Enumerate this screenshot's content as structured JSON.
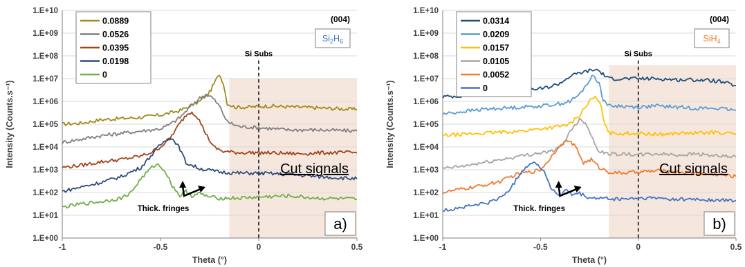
{
  "chart_data": [
    {
      "type": "line",
      "panel_label": "a)",
      "title": "",
      "reflection": "(004)",
      "gas": {
        "base": "Si",
        "sub1": "2",
        "mid": "H",
        "sub2": "6",
        "color": "#4472c4"
      },
      "xlabel": "Theta (°)",
      "ylabel": "Intensity (Counts.s⁻¹)",
      "xlim": [
        -1,
        0.5
      ],
      "ylim_log10": [
        0,
        10
      ],
      "log_scale_y": true,
      "x_ticks": [
        -1,
        -0.5,
        0,
        0.5
      ],
      "x_tick_labels": [
        "-1",
        "-0.5",
        "0",
        "0.5"
      ],
      "y_tick_labels": [
        "1.E+00",
        "1.E+01",
        "1.E+02",
        "1.E+03",
        "1.E+04",
        "1.E+05",
        "1.E+06",
        "1.E+07",
        "1.E+08",
        "1.E+09",
        "1.E+10"
      ],
      "grid": "horizontal",
      "legend_position": "top-left",
      "substrate_line": {
        "x": 0,
        "label": "Si Subs"
      },
      "cut_region": {
        "x_start": -0.15,
        "x_end": 0.5,
        "y_top_log10": 7,
        "label": "Cut signals"
      },
      "annotation": {
        "text": "Thick. fringes",
        "x": -0.38,
        "y_log10": 1.85
      },
      "series": [
        {
          "name": "0.0889",
          "color": "#a08a1e",
          "points": [
            [
              -1,
              5.0
            ],
            [
              -0.9,
              5.05
            ],
            [
              -0.8,
              5.2
            ],
            [
              -0.7,
              5.25
            ],
            [
              -0.6,
              5.3
            ],
            [
              -0.5,
              5.4
            ],
            [
              -0.4,
              5.6
            ],
            [
              -0.35,
              5.8
            ],
            [
              -0.3,
              6.0
            ],
            [
              -0.25,
              6.4
            ],
            [
              -0.22,
              6.9
            ],
            [
              -0.2,
              7.2
            ],
            [
              -0.18,
              6.8
            ],
            [
              -0.16,
              5.9
            ],
            [
              -0.12,
              5.75
            ],
            [
              -0.05,
              5.75
            ],
            [
              0.05,
              5.8
            ],
            [
              0.2,
              5.75
            ],
            [
              0.35,
              5.7
            ],
            [
              0.5,
              5.65
            ]
          ]
        },
        {
          "name": "0.0526",
          "color": "#7f7f7f",
          "points": [
            [
              -1,
              4.2
            ],
            [
              -0.9,
              4.35
            ],
            [
              -0.8,
              4.5
            ],
            [
              -0.7,
              4.6
            ],
            [
              -0.6,
              4.7
            ],
            [
              -0.5,
              4.8
            ],
            [
              -0.45,
              5.0
            ],
            [
              -0.4,
              5.3
            ],
            [
              -0.35,
              5.75
            ],
            [
              -0.3,
              6.15
            ],
            [
              -0.27,
              6.3
            ],
            [
              -0.24,
              6.2
            ],
            [
              -0.2,
              5.8
            ],
            [
              -0.16,
              5.1
            ],
            [
              -0.1,
              4.9
            ],
            [
              0,
              4.85
            ],
            [
              0.15,
              4.75
            ],
            [
              0.3,
              4.75
            ],
            [
              0.5,
              4.7
            ]
          ]
        },
        {
          "name": "0.0395",
          "color": "#a0441a",
          "points": [
            [
              -1,
              3.1
            ],
            [
              -0.9,
              3.2
            ],
            [
              -0.8,
              3.35
            ],
            [
              -0.7,
              3.45
            ],
            [
              -0.6,
              3.6
            ],
            [
              -0.55,
              3.75
            ],
            [
              -0.5,
              4.0
            ],
            [
              -0.45,
              4.4
            ],
            [
              -0.4,
              5.05
            ],
            [
              -0.37,
              5.4
            ],
            [
              -0.34,
              5.55
            ],
            [
              -0.31,
              5.3
            ],
            [
              -0.27,
              4.6
            ],
            [
              -0.23,
              4.0
            ],
            [
              -0.18,
              3.8
            ],
            [
              -0.1,
              3.75
            ],
            [
              0,
              3.75
            ],
            [
              0.2,
              3.7
            ],
            [
              0.35,
              3.75
            ],
            [
              0.5,
              3.75
            ]
          ]
        },
        {
          "name": "0.0198",
          "color": "#2f4b7c",
          "points": [
            [
              -1,
              2.05
            ],
            [
              -0.9,
              2.25
            ],
            [
              -0.8,
              2.45
            ],
            [
              -0.7,
              2.7
            ],
            [
              -0.6,
              3.1
            ],
            [
              -0.55,
              3.6
            ],
            [
              -0.5,
              4.1
            ],
            [
              -0.46,
              4.4
            ],
            [
              -0.43,
              4.3
            ],
            [
              -0.4,
              3.9
            ],
            [
              -0.37,
              3.3
            ],
            [
              -0.3,
              3.05
            ],
            [
              -0.2,
              2.9
            ],
            [
              -0.1,
              2.85
            ],
            [
              0,
              2.85
            ],
            [
              0.15,
              2.8
            ],
            [
              0.3,
              2.7
            ],
            [
              0.5,
              2.6
            ]
          ]
        },
        {
          "name": "0",
          "color": "#70ad47",
          "points": [
            [
              -1,
              1.35
            ],
            [
              -0.9,
              1.5
            ],
            [
              -0.8,
              1.6
            ],
            [
              -0.7,
              1.75
            ],
            [
              -0.65,
              2.0
            ],
            [
              -0.6,
              2.6
            ],
            [
              -0.55,
              3.05
            ],
            [
              -0.52,
              3.25
            ],
            [
              -0.48,
              3.0
            ],
            [
              -0.44,
              2.3
            ],
            [
              -0.4,
              1.85
            ],
            [
              -0.37,
              2.05
            ],
            [
              -0.34,
              1.85
            ],
            [
              -0.3,
              1.95
            ],
            [
              -0.25,
              1.8
            ],
            [
              -0.2,
              1.75
            ],
            [
              -0.1,
              1.75
            ],
            [
              0,
              1.8
            ],
            [
              0.15,
              1.85
            ],
            [
              0.3,
              1.75
            ],
            [
              0.5,
              1.7
            ]
          ]
        }
      ]
    },
    {
      "type": "line",
      "panel_label": "b)",
      "title": "",
      "reflection": "(004)",
      "gas": {
        "base": "Si",
        "sub1": "",
        "mid": "H",
        "sub2": "4",
        "color": "#ed7d31"
      },
      "xlabel": "Theta (°)",
      "ylabel": "Intensity (Counts.s⁻¹)",
      "xlim": [
        -1,
        0.5
      ],
      "ylim_log10": [
        0,
        10
      ],
      "log_scale_y": true,
      "x_ticks": [
        -1,
        -0.5,
        0,
        0.5
      ],
      "x_tick_labels": [
        "-1",
        "-0.5",
        "0",
        "0.5"
      ],
      "y_tick_labels": [
        "1.E+00",
        "1.E+01",
        "1.E+02",
        "1.E+03",
        "1.E+04",
        "1.E+05",
        "1.E+06",
        "1.E+07",
        "1.E+08",
        "1.E+09",
        "1.E+10"
      ],
      "grid": "horizontal",
      "legend_position": "top-left",
      "substrate_line": {
        "x": 0,
        "label": "Si Subs"
      },
      "cut_region": {
        "x_start": -0.15,
        "x_end": 0.5,
        "y_top_log10": 7.6,
        "label": "Cut signals"
      },
      "annotation": {
        "text": "Thick. fringes",
        "x": -0.4,
        "y_log10": 1.85
      },
      "series": [
        {
          "name": "0.0314",
          "color": "#1f4e79",
          "points": [
            [
              -1,
              6.2
            ],
            [
              -0.9,
              6.25
            ],
            [
              -0.8,
              6.3
            ],
            [
              -0.7,
              6.35
            ],
            [
              -0.6,
              6.5
            ],
            [
              -0.5,
              6.55
            ],
            [
              -0.45,
              6.65
            ],
            [
              -0.4,
              6.8
            ],
            [
              -0.35,
              7.1
            ],
            [
              -0.3,
              7.25
            ],
            [
              -0.25,
              7.35
            ],
            [
              -0.21,
              7.4
            ],
            [
              -0.18,
              7.2
            ],
            [
              -0.15,
              7.0
            ],
            [
              -0.1,
              7.0
            ],
            [
              0,
              7.0
            ],
            [
              0.1,
              7.0
            ],
            [
              0.2,
              6.95
            ],
            [
              0.3,
              6.95
            ],
            [
              0.4,
              6.9
            ],
            [
              0.5,
              6.7
            ]
          ]
        },
        {
          "name": "0.0209",
          "color": "#5b9bd5",
          "points": [
            [
              -1,
              5.45
            ],
            [
              -0.9,
              5.55
            ],
            [
              -0.8,
              5.65
            ],
            [
              -0.7,
              5.7
            ],
            [
              -0.6,
              5.75
            ],
            [
              -0.5,
              5.8
            ],
            [
              -0.4,
              5.9
            ],
            [
              -0.35,
              6.0
            ],
            [
              -0.3,
              6.3
            ],
            [
              -0.26,
              6.8
            ],
            [
              -0.23,
              7.15
            ],
            [
              -0.2,
              6.8
            ],
            [
              -0.18,
              6.1
            ],
            [
              -0.15,
              5.8
            ],
            [
              -0.1,
              5.8
            ],
            [
              0,
              5.75
            ],
            [
              0.1,
              5.8
            ],
            [
              0.2,
              5.75
            ],
            [
              0.3,
              5.7
            ],
            [
              0.4,
              5.7
            ],
            [
              0.5,
              5.6
            ]
          ]
        },
        {
          "name": "0.0157",
          "color": "#ffc000",
          "points": [
            [
              -1,
              4.5
            ],
            [
              -0.9,
              4.55
            ],
            [
              -0.8,
              4.6
            ],
            [
              -0.7,
              4.65
            ],
            [
              -0.6,
              4.7
            ],
            [
              -0.5,
              4.8
            ],
            [
              -0.45,
              4.85
            ],
            [
              -0.4,
              4.9
            ],
            [
              -0.35,
              5.0
            ],
            [
              -0.3,
              5.4
            ],
            [
              -0.25,
              6.0
            ],
            [
              -0.22,
              6.2
            ],
            [
              -0.19,
              5.8
            ],
            [
              -0.17,
              4.9
            ],
            [
              -0.14,
              4.6
            ],
            [
              -0.1,
              4.6
            ],
            [
              0,
              4.6
            ],
            [
              0.1,
              4.55
            ],
            [
              0.2,
              4.6
            ],
            [
              0.3,
              4.6
            ],
            [
              0.4,
              4.65
            ],
            [
              0.5,
              4.55
            ]
          ]
        },
        {
          "name": "0.0105",
          "color": "#a5a5a5",
          "points": [
            [
              -1,
              3.05
            ],
            [
              -0.9,
              3.15
            ],
            [
              -0.8,
              3.3
            ],
            [
              -0.7,
              3.45
            ],
            [
              -0.6,
              3.6
            ],
            [
              -0.5,
              3.75
            ],
            [
              -0.45,
              3.8
            ],
            [
              -0.41,
              3.9
            ],
            [
              -0.38,
              4.2
            ],
            [
              -0.34,
              4.8
            ],
            [
              -0.3,
              5.2
            ],
            [
              -0.27,
              5.1
            ],
            [
              -0.23,
              4.3
            ],
            [
              -0.2,
              3.8
            ],
            [
              -0.15,
              3.7
            ],
            [
              -0.1,
              3.7
            ],
            [
              0,
              3.65
            ],
            [
              0.1,
              3.7
            ],
            [
              0.2,
              3.65
            ],
            [
              0.3,
              3.7
            ],
            [
              0.4,
              3.6
            ],
            [
              0.5,
              3.55
            ]
          ]
        },
        {
          "name": "0.0052",
          "color": "#ed7d31",
          "points": [
            [
              -1,
              2.0
            ],
            [
              -0.9,
              2.15
            ],
            [
              -0.8,
              2.3
            ],
            [
              -0.7,
              2.5
            ],
            [
              -0.65,
              2.7
            ],
            [
              -0.6,
              2.85
            ],
            [
              -0.55,
              2.9
            ],
            [
              -0.5,
              3.0
            ],
            [
              -0.45,
              3.5
            ],
            [
              -0.4,
              4.1
            ],
            [
              -0.36,
              4.3
            ],
            [
              -0.32,
              4.0
            ],
            [
              -0.28,
              3.3
            ],
            [
              -0.24,
              3.45
            ],
            [
              -0.2,
              3.1
            ],
            [
              -0.15,
              2.9
            ],
            [
              -0.1,
              2.85
            ],
            [
              0,
              2.9
            ],
            [
              0.1,
              2.95
            ],
            [
              0.2,
              2.9
            ],
            [
              0.3,
              2.85
            ],
            [
              0.4,
              2.8
            ],
            [
              0.5,
              2.7
            ]
          ]
        },
        {
          "name": "0",
          "color": "#4472c4",
          "points": [
            [
              -1,
              1.2
            ],
            [
              -0.9,
              1.35
            ],
            [
              -0.8,
              1.5
            ],
            [
              -0.75,
              1.6
            ],
            [
              -0.7,
              1.8
            ],
            [
              -0.65,
              2.2
            ],
            [
              -0.6,
              2.9
            ],
            [
              -0.56,
              3.25
            ],
            [
              -0.52,
              3.3
            ],
            [
              -0.48,
              2.9
            ],
            [
              -0.44,
              2.1
            ],
            [
              -0.4,
              1.85
            ],
            [
              -0.37,
              2.1
            ],
            [
              -0.34,
              1.9
            ],
            [
              -0.3,
              1.95
            ],
            [
              -0.25,
              1.75
            ],
            [
              -0.2,
              1.75
            ],
            [
              -0.1,
              1.7
            ],
            [
              0,
              1.75
            ],
            [
              0.1,
              1.75
            ],
            [
              0.2,
              1.7
            ],
            [
              0.3,
              1.7
            ],
            [
              0.4,
              1.65
            ],
            [
              0.5,
              1.65
            ]
          ]
        }
      ]
    }
  ]
}
